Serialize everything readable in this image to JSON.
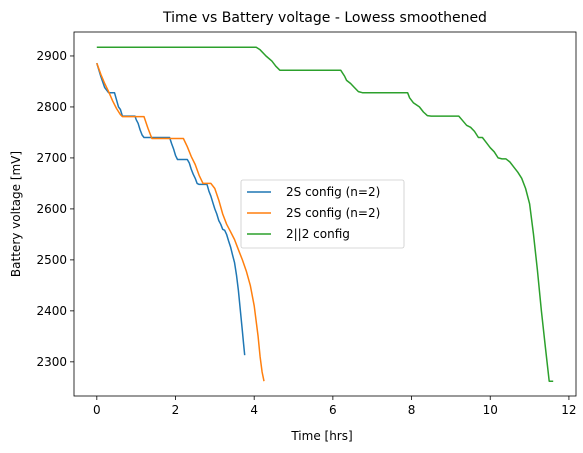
{
  "chart_data": {
    "type": "line",
    "title": "Time vs Battery voltage - Lowess smoothened",
    "xlabel": "Time [hrs]",
    "ylabel": "Battery voltage [mV]",
    "xlim": [
      -0.58,
      12.18
    ],
    "ylim": [
      2233,
      2947
    ],
    "xticks": [
      0,
      2,
      4,
      6,
      8,
      10,
      12
    ],
    "yticks": [
      2300,
      2400,
      2500,
      2600,
      2700,
      2800,
      2900
    ],
    "grid": false,
    "legend_position": "center",
    "series": [
      {
        "name": "2S config (n=2)",
        "color": "#1f77b4",
        "x": [
          0,
          0.1,
          0.2,
          0.3,
          0.45,
          0.55,
          0.6,
          0.65,
          0.7,
          0.8,
          0.9,
          0.97,
          1.0,
          1.05,
          1.1,
          1.15,
          1.2,
          1.3,
          1.4,
          1.5,
          1.6,
          1.7,
          1.8,
          1.85,
          1.9,
          1.95,
          2.0,
          2.05,
          2.1,
          2.2,
          2.3,
          2.35,
          2.4,
          2.45,
          2.5,
          2.55,
          2.6,
          2.7,
          2.8,
          2.85,
          2.9,
          2.95,
          3.0,
          3.05,
          3.1,
          3.15,
          3.2,
          3.25,
          3.3,
          3.35,
          3.4,
          3.45,
          3.5,
          3.55,
          3.6,
          3.65,
          3.7,
          3.73,
          3.76
        ],
        "y": [
          2886,
          2860,
          2838,
          2828,
          2828,
          2800,
          2795,
          2782,
          2782,
          2782,
          2782,
          2782,
          2775,
          2768,
          2755,
          2745,
          2740,
          2740,
          2740,
          2740,
          2740,
          2740,
          2740,
          2740,
          2728,
          2718,
          2705,
          2697,
          2697,
          2697,
          2697,
          2690,
          2678,
          2668,
          2660,
          2650,
          2648,
          2648,
          2648,
          2635,
          2625,
          2612,
          2600,
          2590,
          2577,
          2570,
          2560,
          2558,
          2550,
          2537,
          2525,
          2510,
          2495,
          2470,
          2440,
          2400,
          2360,
          2335,
          2313
        ]
      },
      {
        "name": "2S config (n=2)",
        "color": "#ff7f0e",
        "x": [
          0,
          0.1,
          0.2,
          0.3,
          0.4,
          0.5,
          0.6,
          0.65,
          0.7,
          0.8,
          1.0,
          1.2,
          1.3,
          1.4,
          1.5,
          1.6,
          1.8,
          2.0,
          2.2,
          2.3,
          2.4,
          2.5,
          2.6,
          2.7,
          2.8,
          2.9,
          3.0,
          3.1,
          3.2,
          3.3,
          3.4,
          3.5,
          3.6,
          3.7,
          3.8,
          3.9,
          4.0,
          4.1,
          4.15,
          4.2,
          4.25
        ],
        "y": [
          2886,
          2864,
          2846,
          2830,
          2812,
          2797,
          2785,
          2781,
          2781,
          2781,
          2781,
          2781,
          2758,
          2738,
          2738,
          2738,
          2738,
          2738,
          2738,
          2722,
          2703,
          2687,
          2666,
          2650,
          2650,
          2650,
          2640,
          2617,
          2590,
          2570,
          2555,
          2540,
          2520,
          2500,
          2478,
          2450,
          2410,
          2350,
          2310,
          2280,
          2262
        ]
      },
      {
        "name": "2||2 config",
        "color": "#2ca02c",
        "x": [
          0,
          1,
          2,
          3,
          4,
          4.05,
          4.15,
          4.3,
          4.45,
          4.55,
          4.65,
          5.0,
          6.0,
          6.2,
          6.3,
          6.35,
          6.45,
          6.55,
          6.65,
          6.75,
          7.0,
          7.9,
          7.95,
          8.05,
          8.2,
          8.3,
          8.4,
          8.5,
          9.2,
          9.3,
          9.4,
          9.5,
          9.6,
          9.7,
          9.8,
          9.9,
          10.0,
          10.1,
          10.2,
          10.3,
          10.4,
          10.5,
          10.6,
          10.7,
          10.8,
          10.9,
          11.0,
          11.1,
          11.2,
          11.3,
          11.4,
          11.5,
          11.6
        ],
        "y": [
          2917,
          2917,
          2917,
          2917,
          2917,
          2917,
          2912,
          2900,
          2890,
          2880,
          2872,
          2872,
          2872,
          2872,
          2860,
          2852,
          2846,
          2838,
          2830,
          2828,
          2828,
          2828,
          2818,
          2808,
          2800,
          2790,
          2783,
          2782,
          2782,
          2773,
          2764,
          2760,
          2752,
          2740,
          2740,
          2730,
          2720,
          2712,
          2700,
          2698,
          2698,
          2692,
          2682,
          2672,
          2660,
          2640,
          2610,
          2550,
          2480,
          2400,
          2330,
          2262,
          2262
        ]
      }
    ]
  }
}
